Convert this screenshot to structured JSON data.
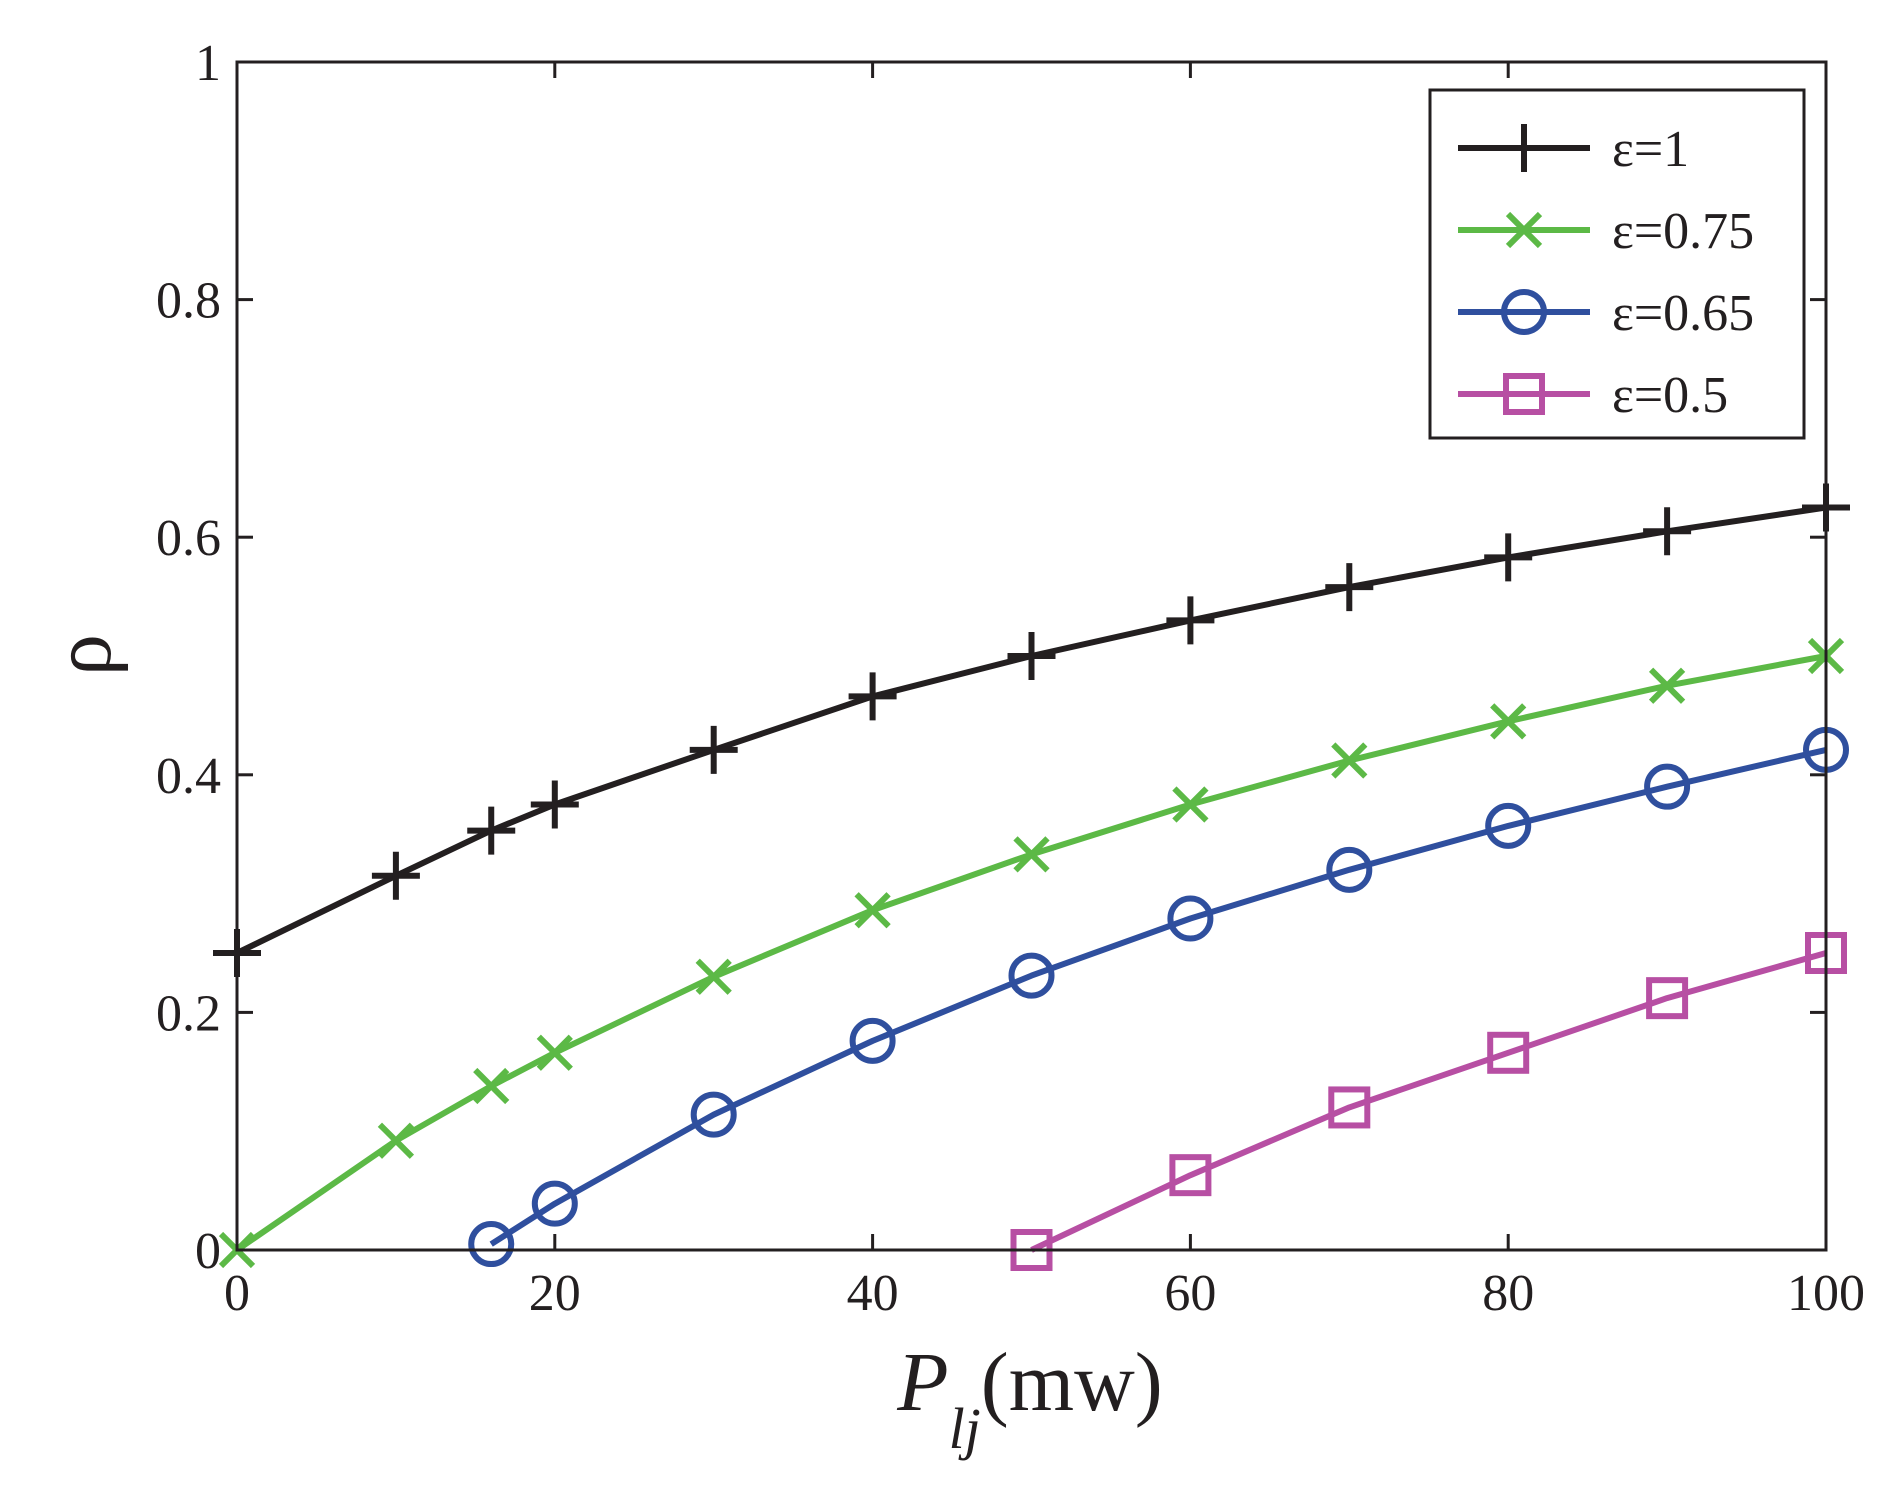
{
  "chart_data": {
    "type": "line",
    "title": "",
    "xlabel": {
      "main": "P",
      "subscript": "lj",
      "unit": "(mw)"
    },
    "ylabel": "ρ",
    "xlim": [
      0,
      100
    ],
    "ylim": [
      0,
      1
    ],
    "xticks": [
      0,
      20,
      40,
      60,
      80,
      100
    ],
    "xtick_labels": [
      "0",
      "20",
      "40",
      "60",
      "80",
      "100"
    ],
    "yticks": [
      0,
      0.2,
      0.4,
      0.6,
      0.8,
      1
    ],
    "ytick_labels": [
      "0",
      "0.2",
      "0.4",
      "0.6",
      "0.8",
      "1"
    ],
    "grid": false,
    "legend_position": "top-right",
    "series": [
      {
        "name": "ε=1",
        "color": "#231f20",
        "marker": "plus",
        "x": [
          0,
          10,
          16,
          20,
          30,
          40,
          50,
          60,
          70,
          80,
          90,
          100
        ],
        "y": [
          0.25,
          0.315,
          0.353,
          0.375,
          0.421,
          0.466,
          0.5,
          0.53,
          0.558,
          0.583,
          0.605,
          0.625
        ]
      },
      {
        "name": "ε=0.75",
        "color": "#5cb946",
        "marker": "x",
        "x": [
          0,
          10,
          16,
          20,
          30,
          40,
          50,
          60,
          70,
          80,
          90,
          100
        ],
        "y": [
          0.0,
          0.092,
          0.138,
          0.166,
          0.23,
          0.286,
          0.333,
          0.375,
          0.412,
          0.445,
          0.475,
          0.5
        ]
      },
      {
        "name": "ε=0.65",
        "color": "#2f4f9e",
        "marker": "circle",
        "x": [
          16,
          20,
          30,
          40,
          50,
          60,
          70,
          80,
          90,
          100
        ],
        "y": [
          0.005,
          0.039,
          0.114,
          0.176,
          0.231,
          0.279,
          0.32,
          0.357,
          0.39,
          0.421
        ]
      },
      {
        "name": "ε=0.5",
        "color": "#b74fa3",
        "marker": "square",
        "x": [
          50,
          60,
          70,
          80,
          90,
          100
        ],
        "y": [
          0.0,
          0.063,
          0.12,
          0.166,
          0.212,
          0.25
        ]
      }
    ]
  }
}
